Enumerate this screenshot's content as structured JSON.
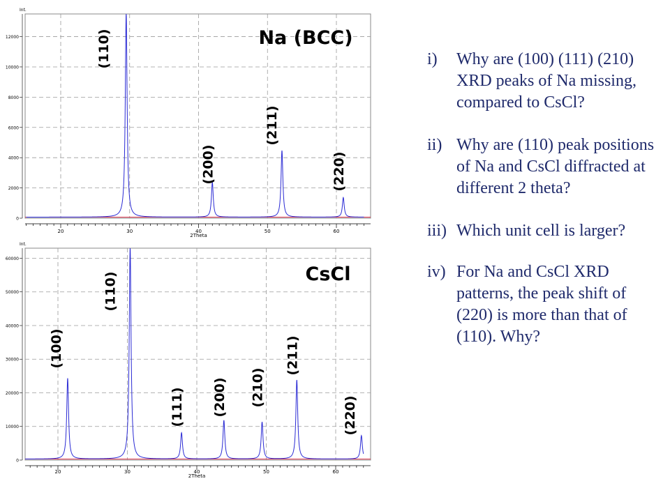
{
  "charts": [
    {
      "type": "line",
      "title": "Na (BCC)",
      "ylabel": "Int.",
      "xlabel": "2Theta",
      "xlim": [
        15,
        64
      ],
      "ylim": [
        0,
        13500
      ],
      "xticks": [
        20,
        30,
        40,
        50,
        60
      ],
      "yticks": [
        0,
        2000,
        4000,
        6000,
        8000,
        10000,
        12000
      ],
      "grid": true,
      "peaks": [
        {
          "hkl": "(110)",
          "x": 29.5,
          "y": 13500
        },
        {
          "hkl": "(200)",
          "x": 42.0,
          "y": 2300
        },
        {
          "hkl": "(211)",
          "x": 52.1,
          "y": 4400
        },
        {
          "hkl": "(220)",
          "x": 61.0,
          "y": 1300
        }
      ]
    },
    {
      "type": "line",
      "title": "CsCl",
      "ylabel": "Int.",
      "xlabel": "2Theta",
      "xlim": [
        15,
        64
      ],
      "ylim": [
        0,
        63000
      ],
      "xticks": [
        20,
        30,
        40,
        50,
        60
      ],
      "yticks": [
        0,
        10000,
        20000,
        30000,
        40000,
        50000,
        60000
      ],
      "grid": true,
      "peaks": [
        {
          "hkl": "(100)",
          "x": 21.4,
          "y": 24000
        },
        {
          "hkl": "(110)",
          "x": 30.4,
          "y": 63000
        },
        {
          "hkl": "(111)",
          "x": 37.8,
          "y": 7800
        },
        {
          "hkl": "(200)",
          "x": 43.9,
          "y": 11500
        },
        {
          "hkl": "(210)",
          "x": 49.4,
          "y": 11000
        },
        {
          "hkl": "(211)",
          "x": 54.4,
          "y": 23500
        },
        {
          "hkl": "(220)",
          "x": 63.7,
          "y": 7000
        }
      ]
    }
  ],
  "questions": [
    {
      "num": "i)",
      "text": "Why are (100) (111) (210) XRD peaks of Na missing, compared to CsCl?"
    },
    {
      "num": "ii)",
      "text": "Why are (110) peak positions of Na and CsCl diffracted at different 2 theta?"
    },
    {
      "num": "iii)",
      "text": "Which unit cell is larger?"
    },
    {
      "num": "iv)",
      "text": "For Na and CsCl XRD patterns, the peak shift of (220) is more than that of (110). Why?"
    }
  ]
}
